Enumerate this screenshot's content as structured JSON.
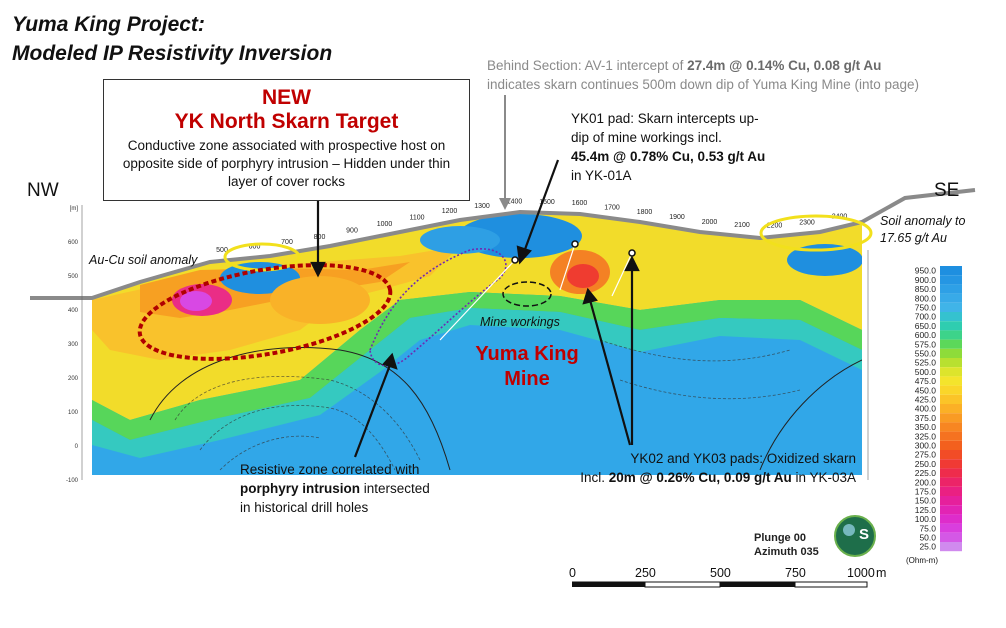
{
  "title": {
    "line1": "Yuma King Project:",
    "line2": "Modeled IP Resistivity Inversion"
  },
  "behind_section": {
    "line1_pre": "Behind Section: AV-1 intercept of ",
    "line1_b1": "27.4m",
    "line1_mid": " @ 0.14% Cu, 0.08 g/t Au",
    "line2": "indicates skarn continues 500m down dip of Yuma King Mine (into page)"
  },
  "new_target": {
    "label_new": "NEW",
    "label_name": "YK North Skarn Target",
    "description": "Conductive zone associated with prospective host on opposite side of porphyry intrusion – Hidden under thin layer of cover rocks"
  },
  "direction": {
    "nw": "NW",
    "se": "SE"
  },
  "yk01": {
    "line1": "YK01 pad: Skarn intercepts up-",
    "line2": "dip of mine workings incl.",
    "line3_bold": "45.4m @ 0.78% Cu, 0.53 g/t Au",
    "line4": "in YK-01A"
  },
  "soil_se": {
    "line1": "Soil anomaly to",
    "line2": "17.65 g/t Au"
  },
  "soil_nw": "Au-Cu soil anomaly",
  "mine_workings": "Mine workings",
  "mine_name": {
    "line1": "Yuma King",
    "line2": "Mine"
  },
  "resistive": {
    "line1": "Resistive zone correlated with",
    "line2_bold": "porphyry intrusion",
    "line2_rest": " intersected",
    "line3": "in historical drill holes"
  },
  "yk02": {
    "line1": "YK02 and YK03 pads: Oxidized skarn",
    "line2_pre": "Incl. ",
    "line2_bold": "20m @ 0.26% Cu, 0.09 g/t Au",
    "line2_post": " in YK-03A"
  },
  "plunge": {
    "line1": "Plunge 00",
    "line2": "Azimuth 035"
  },
  "logo": {
    "letters": "S"
  },
  "scale": {
    "labels": [
      "0",
      "250",
      "500",
      "750",
      "1000"
    ],
    "unit": "m"
  },
  "station_labels": [
    "500",
    "600",
    "700",
    "800",
    "900",
    "1000",
    "1100",
    "1200",
    "1300",
    "1400",
    "1500",
    "1600",
    "1700",
    "1800",
    "1900",
    "2000",
    "2100",
    "2200",
    "2300",
    "2400"
  ],
  "depth_labels_left": [
    "[m]",
    "600",
    "500",
    "400",
    "300",
    "200",
    "100",
    "0",
    "-100"
  ],
  "legend": {
    "values": [
      "950.0",
      "900.0",
      "850.0",
      "800.0",
      "750.0",
      "700.0",
      "650.0",
      "600.0",
      "575.0",
      "550.0",
      "525.0",
      "500.0",
      "475.0",
      "450.0",
      "425.0",
      "400.0",
      "375.0",
      "350.0",
      "325.0",
      "300.0",
      "275.0",
      "250.0",
      "225.0",
      "200.0",
      "175.0",
      "150.0",
      "125.0",
      "100.0",
      "75.0",
      "50.0",
      "25.0"
    ],
    "colors": [
      "#1e8fe0",
      "#2596e3",
      "#2ea0e6",
      "#38aae8",
      "#40b4e8",
      "#35c2cf",
      "#2fcdb0",
      "#3dd38a",
      "#5cd85a",
      "#8edc3a",
      "#b8e030",
      "#dde42c",
      "#f4e42c",
      "#fad62a",
      "#fbc428",
      "#fbb026",
      "#f99b24",
      "#f78622",
      "#f57220",
      "#f3601e",
      "#f24c26",
      "#f03a34",
      "#ee2c4c",
      "#ec2468",
      "#ea2082",
      "#e6209c",
      "#e224b4",
      "#de2ccb",
      "#d93ede",
      "#d458e6",
      "#d08aee"
    ],
    "unit": "(Ohm-m)"
  },
  "colors": {
    "accent_red": "#c00000",
    "annotation_gray": "#8a8a8a",
    "yellow_ellipse": "#f2e01c"
  }
}
